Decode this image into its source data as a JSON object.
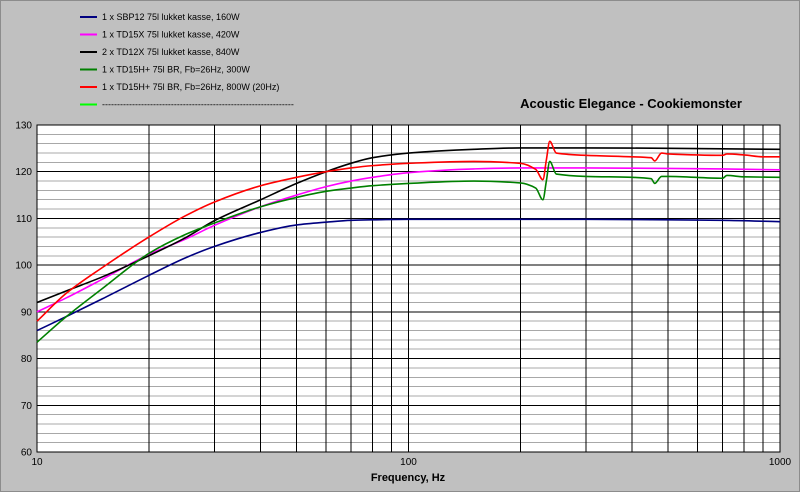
{
  "chart_data": {
    "type": "line",
    "title": "Acoustic Elegance - Cookiemonster",
    "xlabel": "Frequency, Hz",
    "ylabel": "",
    "xscale": "log",
    "xlim": [
      10,
      1000
    ],
    "ylim": [
      60,
      130
    ],
    "xticks": [
      "10",
      "100",
      "1000"
    ],
    "yticks": [
      "60",
      "70",
      "80",
      "90",
      "100",
      "110",
      "120",
      "130"
    ],
    "grid": true,
    "legend": "top-left",
    "series": [
      {
        "name": "1 x SBP12 75l lukket kasse, 160W",
        "color": "#000080",
        "x": [
          10,
          12,
          15,
          20,
          25,
          30,
          40,
          50,
          60,
          70,
          80,
          100,
          150,
          200,
          300,
          500,
          700,
          1000
        ],
        "y": [
          86,
          89,
          92.8,
          97.8,
          101.5,
          104,
          107,
          108.6,
          109.2,
          109.6,
          109.7,
          109.8,
          109.8,
          109.8,
          109.8,
          109.7,
          109.6,
          109.3
        ]
      },
      {
        "name": "1 x TD15X 75l lukket kasse, 420W",
        "color": "#ff00ff",
        "x": [
          10,
          12,
          15,
          20,
          25,
          30,
          40,
          50,
          60,
          70,
          80,
          100,
          150,
          200,
          300,
          500,
          700,
          1000
        ],
        "y": [
          90,
          93,
          97,
          102.3,
          105.5,
          108.5,
          112.5,
          115,
          116.8,
          118,
          118.8,
          119.8,
          120.6,
          120.8,
          120.8,
          120.7,
          120.6,
          120.4
        ]
      },
      {
        "name": "2 x TD12X 75l lukket kasse, 840W",
        "color": "#000000",
        "x": [
          10,
          12,
          15,
          20,
          25,
          30,
          40,
          50,
          60,
          70,
          80,
          100,
          150,
          200,
          300,
          500,
          700,
          1000
        ],
        "y": [
          92,
          94.5,
          97.5,
          102,
          105.8,
          109.5,
          114,
          117.5,
          120,
          121.8,
          123,
          124,
          124.8,
          125.1,
          125.1,
          125,
          124.9,
          124.8
        ]
      },
      {
        "name": "1 x TD15H+ 75l BR, Fb=26Hz, 300W",
        "color": "#008000",
        "x": [
          10,
          12,
          15,
          20,
          25,
          30,
          40,
          50,
          60,
          70,
          80,
          100,
          150,
          200,
          220,
          230,
          235,
          240,
          250,
          300,
          400,
          450,
          460,
          480,
          500,
          700,
          720,
          800,
          1000
        ],
        "y": [
          83.5,
          89,
          95,
          102.5,
          106.5,
          109,
          112.5,
          114.5,
          115.8,
          116.5,
          117,
          117.5,
          118,
          117.6,
          116.5,
          114,
          118,
          122.2,
          119.5,
          119,
          118.8,
          118.5,
          117.5,
          119,
          119,
          118.6,
          119.2,
          118.9,
          118.8
        ]
      },
      {
        "name": "1 x TD15H+ 75l BR, Fb=26Hz, 800W (20Hz)",
        "color": "#ff0000",
        "x": [
          10,
          12,
          15,
          20,
          25,
          30,
          40,
          50,
          60,
          70,
          80,
          100,
          150,
          200,
          220,
          230,
          235,
          240,
          250,
          300,
          400,
          450,
          460,
          480,
          500,
          700,
          720,
          800,
          900,
          1000
        ],
        "y": [
          88,
          94,
          99.5,
          106,
          110.5,
          113.5,
          117,
          118.8,
          120,
          120.8,
          121.3,
          121.8,
          122.2,
          121.8,
          120.5,
          118.3,
          122.5,
          126.5,
          124,
          123.5,
          123.2,
          123,
          122.3,
          124,
          123.8,
          123.5,
          123.8,
          123.6,
          123.2,
          123.2
        ]
      },
      {
        "name": "----------------------------------------------------------------",
        "color": "#00ff00",
        "x": [],
        "y": []
      }
    ]
  }
}
